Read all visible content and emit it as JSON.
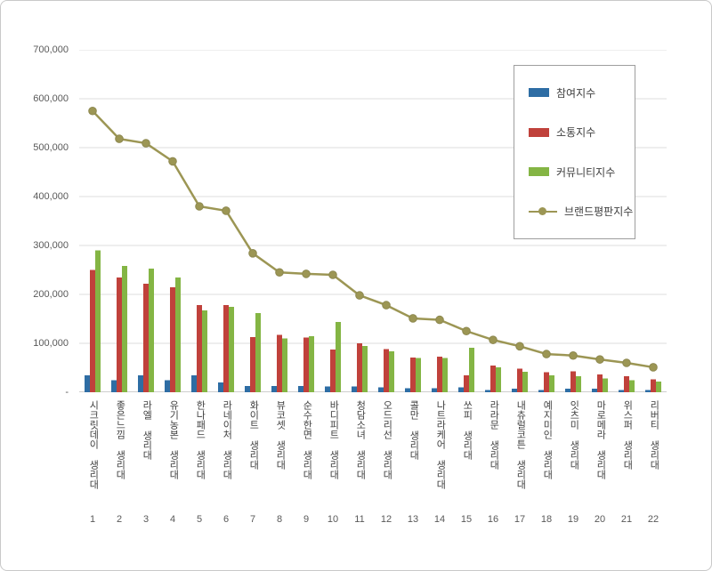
{
  "chart_data": {
    "type": "bar+line",
    "title": "",
    "xlabel": "",
    "ylabel": "",
    "ylim": [
      0,
      700000
    ],
    "ytick_step": 100000,
    "grid": true,
    "legend_position": "top-right",
    "yticks": [
      {
        "v": 0,
        "label": "-"
      },
      {
        "v": 100000,
        "label": "100,000"
      },
      {
        "v": 200000,
        "label": "200,000"
      },
      {
        "v": 300000,
        "label": "300,000"
      },
      {
        "v": 400000,
        "label": "400,000"
      },
      {
        "v": 500000,
        "label": "500,000"
      },
      {
        "v": 600000,
        "label": "600,000"
      },
      {
        "v": 700000,
        "label": "700,000"
      }
    ],
    "categories": [
      "시크릿데이 생리대",
      "좋은느낌 생리대",
      "라엘 생리대",
      "유기농본 생리대",
      "한나패드 생리대",
      "라네이처 생리대",
      "화이트 생리대",
      "뷰코셋 생리대",
      "순수한면 생리대",
      "바디피트 생리대",
      "청담소녀 생리대",
      "오드리선 생리대",
      "콜만 생리대",
      "나트라케어 생리대",
      "쏘피 생리대",
      "라라문 생리대",
      "내츄럴코튼 생리대",
      "예지미인 생리대",
      "잇츠미 생리대",
      "마로메라 생리대",
      "위스퍼 생리대",
      "리버티 생리대"
    ],
    "category_numbers": [
      "1",
      "2",
      "3",
      "4",
      "5",
      "6",
      "7",
      "8",
      "9",
      "10",
      "11",
      "12",
      "13",
      "14",
      "15",
      "16",
      "17",
      "18",
      "19",
      "20",
      "21",
      "22"
    ],
    "series": [
      {
        "key": "participation",
        "name": "참여지수",
        "type": "bar",
        "color": "#2E6DA4",
        "values": [
          35000,
          25000,
          35000,
          25000,
          35000,
          20000,
          13000,
          13000,
          13000,
          12000,
          12000,
          10000,
          8000,
          8000,
          10000,
          5000,
          7000,
          5000,
          7000,
          7000,
          5000,
          5000
        ]
      },
      {
        "key": "communication",
        "name": "소통지수",
        "type": "bar",
        "color": "#C0413B",
        "values": [
          250000,
          235000,
          222000,
          215000,
          178000,
          178000,
          113000,
          117000,
          112000,
          87000,
          100000,
          88000,
          71000,
          73000,
          35000,
          55000,
          48000,
          41000,
          43000,
          36000,
          33000,
          26000
        ]
      },
      {
        "key": "community",
        "name": "커뮤니티지수",
        "type": "bar",
        "color": "#84B544",
        "values": [
          290000,
          258000,
          253000,
          235000,
          167000,
          175000,
          162000,
          110000,
          115000,
          144000,
          95000,
          84000,
          70000,
          70000,
          91000,
          51000,
          42000,
          35000,
          33000,
          28000,
          25000,
          22000
        ]
      },
      {
        "key": "brand-reputation",
        "name": "브랜드평판지수",
        "type": "line",
        "color": "#9C9654",
        "marker_stroke": "#8D8850",
        "values": [
          575000,
          518000,
          509000,
          472000,
          380000,
          371000,
          284000,
          245000,
          242000,
          240000,
          198000,
          178000,
          151000,
          148000,
          125000,
          107000,
          94000,
          78000,
          75000,
          67000,
          60000,
          51000
        ]
      }
    ]
  }
}
